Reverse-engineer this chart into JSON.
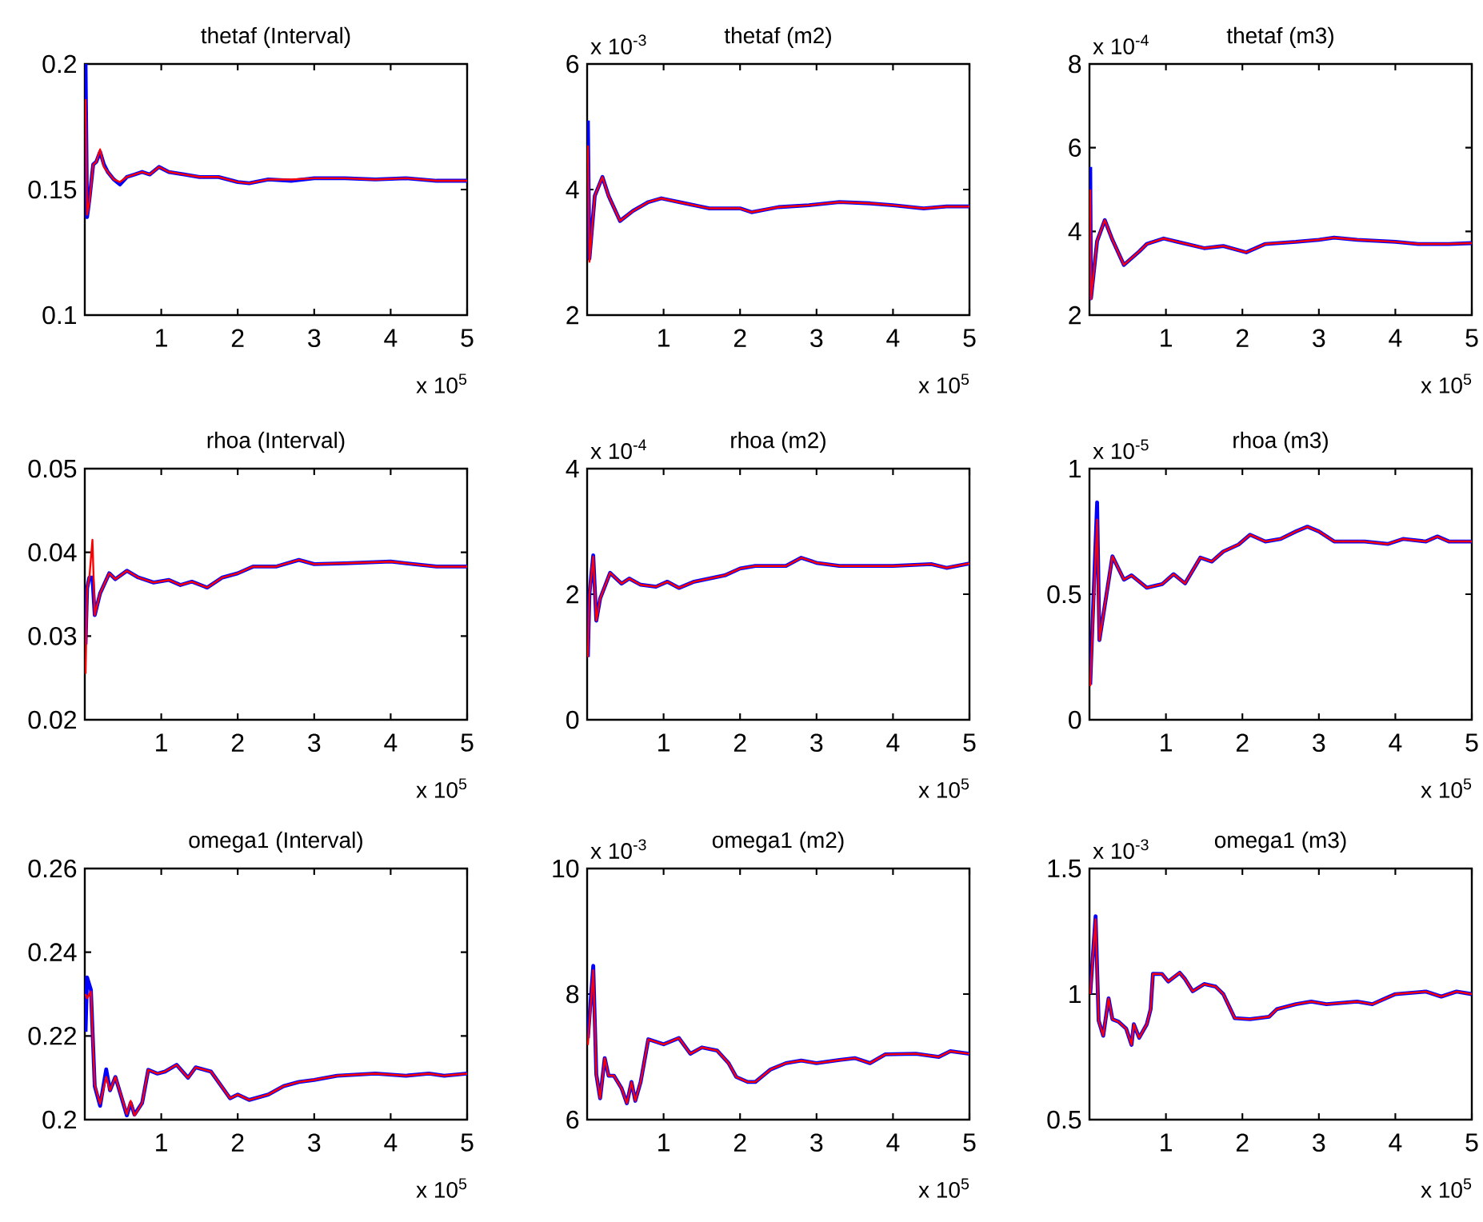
{
  "chart_data": [
    {
      "type": "line",
      "title": "thetaf (Interval)",
      "xlabel": "x 10$^{5}$",
      "xlim": [
        0,
        5
      ],
      "xticks": [
        1,
        2,
        3,
        4,
        5
      ],
      "ylim": [
        0.1,
        0.2
      ],
      "yticks": [
        0.1,
        0.15,
        0.2
      ],
      "x": [
        0.01,
        0.03,
        0.06,
        0.11,
        0.15,
        0.2,
        0.25,
        0.3,
        0.38,
        0.46,
        0.55,
        0.65,
        0.75,
        0.85,
        0.97,
        1.1,
        1.3,
        1.5,
        1.75,
        2,
        2.15,
        2.4,
        2.7,
        3,
        3.4,
        3.8,
        4.2,
        4.6,
        5
      ],
      "series": [
        {
          "color": "#0000ff",
          "values": [
            0.2,
            0.139,
            0.146,
            0.16,
            0.161,
            0.165,
            0.16,
            0.157,
            0.154,
            0.152,
            0.155,
            0.156,
            0.157,
            0.156,
            0.159,
            0.157,
            0.156,
            0.155,
            0.155,
            0.153,
            0.1525,
            0.154,
            0.1535,
            0.1545,
            0.1545,
            0.154,
            0.1545,
            0.1535,
            0.1535
          ]
        },
        {
          "color": "#ff0000",
          "values": [
            0.186,
            0.14,
            0.145,
            0.16,
            0.161,
            0.166,
            0.159,
            0.157,
            0.154,
            0.153,
            0.155,
            0.156,
            0.157,
            0.156,
            0.159,
            0.157,
            0.156,
            0.155,
            0.155,
            0.153,
            0.1525,
            0.154,
            0.154,
            0.1545,
            0.1545,
            0.154,
            0.1545,
            0.1535,
            0.1535
          ]
        }
      ]
    },
    {
      "type": "line",
      "title": "thetaf (m2)",
      "xlabel": "x 10$^{5}$",
      "ylabel": "x 10$^{-3}$",
      "xlim": [
        0,
        5
      ],
      "xticks": [
        1,
        2,
        3,
        4,
        5
      ],
      "ylim": [
        2,
        6
      ],
      "yticks": [
        2,
        4,
        6
      ],
      "x": [
        0.01,
        0.03,
        0.1,
        0.2,
        0.28,
        0.43,
        0.6,
        0.8,
        0.97,
        1.2,
        1.6,
        2,
        2.15,
        2.5,
        2.9,
        3.3,
        3.7,
        4,
        4.4,
        4.7,
        5
      ],
      "series": [
        {
          "color": "#0000ff",
          "values": [
            5.1,
            2.9,
            3.9,
            4.2,
            3.9,
            3.5,
            3.66,
            3.8,
            3.86,
            3.8,
            3.7,
            3.7,
            3.64,
            3.72,
            3.75,
            3.8,
            3.78,
            3.75,
            3.7,
            3.73,
            3.73
          ]
        },
        {
          "color": "#ff0000",
          "values": [
            4.7,
            2.85,
            3.9,
            4.2,
            3.9,
            3.5,
            3.66,
            3.8,
            3.86,
            3.8,
            3.7,
            3.7,
            3.64,
            3.72,
            3.75,
            3.8,
            3.78,
            3.75,
            3.7,
            3.73,
            3.73
          ]
        }
      ]
    },
    {
      "type": "line",
      "title": "thetaf (m3)",
      "xlabel": "x 10$^{5}$",
      "ylabel": "x 10$^{-4}$",
      "xlim": [
        0,
        5
      ],
      "xticks": [
        1,
        2,
        3,
        4,
        5
      ],
      "ylim": [
        2,
        8
      ],
      "yticks": [
        2,
        4,
        6,
        8
      ],
      "x": [
        0.01,
        0.02,
        0.1,
        0.2,
        0.3,
        0.45,
        0.65,
        0.75,
        0.97,
        1.15,
        1.5,
        1.75,
        2.05,
        2.3,
        2.7,
        3,
        3.2,
        3.5,
        4,
        4.3,
        4.7,
        5
      ],
      "series": [
        {
          "color": "#0000ff",
          "values": [
            5.54,
            2.4,
            3.77,
            4.27,
            3.8,
            3.2,
            3.52,
            3.7,
            3.83,
            3.75,
            3.6,
            3.65,
            3.5,
            3.7,
            3.75,
            3.8,
            3.85,
            3.8,
            3.75,
            3.7,
            3.7,
            3.72
          ]
        },
        {
          "color": "#ff0000",
          "values": [
            5.0,
            2.38,
            3.77,
            4.27,
            3.8,
            3.2,
            3.52,
            3.7,
            3.83,
            3.75,
            3.6,
            3.65,
            3.5,
            3.7,
            3.75,
            3.8,
            3.85,
            3.8,
            3.75,
            3.7,
            3.7,
            3.72
          ]
        }
      ]
    },
    {
      "type": "line",
      "title": "rhoa (Interval)",
      "xlabel": "x 10$^{5}$",
      "xlim": [
        0,
        5
      ],
      "xticks": [
        1,
        2,
        3,
        4,
        5
      ],
      "ylim": [
        0.02,
        0.05
      ],
      "yticks": [
        0.02,
        0.03,
        0.04,
        0.05
      ],
      "x": [
        0.01,
        0.03,
        0.06,
        0.1,
        0.13,
        0.2,
        0.32,
        0.4,
        0.55,
        0.7,
        0.9,
        1.1,
        1.25,
        1.4,
        1.6,
        1.8,
        2,
        2.2,
        2.5,
        2.8,
        3,
        3.4,
        4,
        4.3,
        4.6,
        5
      ],
      "series": [
        {
          "color": "#0000ff",
          "values": [
            0.029,
            0.0357,
            0.037,
            0.037,
            0.0325,
            0.0351,
            0.0375,
            0.0368,
            0.0378,
            0.037,
            0.0364,
            0.0367,
            0.0361,
            0.0365,
            0.0358,
            0.037,
            0.0375,
            0.0383,
            0.0383,
            0.0391,
            0.0386,
            0.0387,
            0.0389,
            0.0386,
            0.0383,
            0.0383
          ]
        },
        {
          "color": "#ff0000",
          "values": [
            0.0255,
            0.0357,
            0.037,
            0.0415,
            0.0325,
            0.0351,
            0.0375,
            0.0368,
            0.0378,
            0.037,
            0.0364,
            0.0367,
            0.0361,
            0.0365,
            0.0358,
            0.037,
            0.0375,
            0.0383,
            0.0383,
            0.0391,
            0.0386,
            0.0387,
            0.0389,
            0.0386,
            0.0383,
            0.0383
          ]
        }
      ]
    },
    {
      "type": "line",
      "title": "rhoa (m2)",
      "xlabel": "x 10$^{5}$",
      "ylabel": "x 10$^{-4}$",
      "xlim": [
        0,
        5
      ],
      "xticks": [
        1,
        2,
        3,
        4,
        5
      ],
      "ylim": [
        0,
        4
      ],
      "yticks": [
        0,
        2,
        4
      ],
      "x": [
        0.01,
        0.03,
        0.08,
        0.12,
        0.17,
        0.3,
        0.45,
        0.55,
        0.7,
        0.9,
        1.05,
        1.2,
        1.4,
        1.6,
        1.8,
        2,
        2.2,
        2.6,
        2.8,
        3,
        3.3,
        4,
        4.5,
        4.7,
        5
      ],
      "series": [
        {
          "color": "#0000ff",
          "values": [
            1.0,
            2.0,
            2.62,
            1.58,
            1.93,
            2.34,
            2.17,
            2.25,
            2.15,
            2.12,
            2.2,
            2.1,
            2.2,
            2.25,
            2.3,
            2.41,
            2.45,
            2.45,
            2.58,
            2.5,
            2.45,
            2.45,
            2.48,
            2.42,
            2.49
          ]
        },
        {
          "color": "#ff0000",
          "values": [
            1.0,
            2.0,
            2.6,
            1.58,
            1.93,
            2.34,
            2.17,
            2.25,
            2.15,
            2.12,
            2.2,
            2.1,
            2.2,
            2.25,
            2.3,
            2.41,
            2.45,
            2.45,
            2.58,
            2.5,
            2.45,
            2.45,
            2.48,
            2.42,
            2.49
          ]
        }
      ]
    },
    {
      "type": "line",
      "title": "rhoa (m3)",
      "xlabel": "x 10$^{5}$",
      "ylabel": "x 10$^{-5}$",
      "xlim": [
        0,
        5
      ],
      "xticks": [
        1,
        2,
        3,
        4,
        5
      ],
      "ylim": [
        0,
        1
      ],
      "yticks": [
        0,
        0.5,
        1
      ],
      "x": [
        0.01,
        0.1,
        0.13,
        0.3,
        0.45,
        0.55,
        0.75,
        0.95,
        1.1,
        1.25,
        1.45,
        1.6,
        1.75,
        1.95,
        2.1,
        2.3,
        2.5,
        2.7,
        2.85,
        3,
        3.2,
        3.6,
        3.9,
        4.1,
        4.4,
        4.55,
        4.7,
        5
      ],
      "series": [
        {
          "color": "#0000ff",
          "values": [
            0.14,
            0.866,
            0.317,
            0.651,
            0.558,
            0.575,
            0.526,
            0.54,
            0.58,
            0.543,
            0.646,
            0.63,
            0.67,
            0.698,
            0.737,
            0.71,
            0.72,
            0.75,
            0.769,
            0.75,
            0.71,
            0.71,
            0.7,
            0.72,
            0.71,
            0.73,
            0.71,
            0.71
          ]
        },
        {
          "color": "#ff0000",
          "values": [
            0.134,
            0.797,
            0.317,
            0.651,
            0.558,
            0.575,
            0.526,
            0.54,
            0.58,
            0.543,
            0.646,
            0.63,
            0.67,
            0.698,
            0.737,
            0.71,
            0.72,
            0.75,
            0.769,
            0.75,
            0.71,
            0.71,
            0.7,
            0.72,
            0.71,
            0.73,
            0.71,
            0.71
          ]
        }
      ]
    },
    {
      "type": "line",
      "title": "omega1 (Interval)",
      "xlabel": "x 10$^{5}$",
      "xlim": [
        0,
        5
      ],
      "xticks": [
        1,
        2,
        3,
        4,
        5
      ],
      "ylim": [
        0.2,
        0.26
      ],
      "yticks": [
        0.2,
        0.22,
        0.24,
        0.26
      ],
      "x": [
        0.01,
        0.03,
        0.08,
        0.13,
        0.2,
        0.28,
        0.33,
        0.4,
        0.55,
        0.6,
        0.65,
        0.75,
        0.83,
        0.95,
        1.05,
        1.2,
        1.35,
        1.45,
        1.65,
        1.9,
        2,
        2.15,
        2.4,
        2.6,
        2.8,
        3,
        3.3,
        3.8,
        4.2,
        4.5,
        4.7,
        5
      ],
      "series": [
        {
          "color": "#0000ff",
          "values": [
            0.221,
            0.234,
            0.231,
            0.208,
            0.2033,
            0.212,
            0.207,
            0.2102,
            0.201,
            0.204,
            0.2012,
            0.204,
            0.2119,
            0.211,
            0.2115,
            0.2131,
            0.21,
            0.2125,
            0.2115,
            0.2051,
            0.206,
            0.2047,
            0.206,
            0.208,
            0.209,
            0.2095,
            0.2105,
            0.211,
            0.2105,
            0.211,
            0.2105,
            0.211
          ]
        },
        {
          "color": "#ff0000",
          "values": [
            0.23,
            0.229,
            0.2306,
            0.2083,
            0.2038,
            0.2102,
            0.207,
            0.2102,
            0.2013,
            0.2045,
            0.201,
            0.204,
            0.2119,
            0.211,
            0.2115,
            0.2131,
            0.21,
            0.2125,
            0.2115,
            0.2051,
            0.206,
            0.2047,
            0.206,
            0.208,
            0.209,
            0.2095,
            0.2105,
            0.211,
            0.2105,
            0.211,
            0.2105,
            0.211
          ]
        }
      ]
    },
    {
      "type": "line",
      "title": "omega1 (m2)",
      "xlabel": "x 10$^{5}$",
      "ylabel": "x 10$^{-3}$",
      "xlim": [
        0,
        5
      ],
      "xticks": [
        1,
        2,
        3,
        4,
        5
      ],
      "ylim": [
        6,
        10
      ],
      "yticks": [
        6,
        8,
        10
      ],
      "x": [
        0.01,
        0.08,
        0.12,
        0.17,
        0.23,
        0.28,
        0.35,
        0.45,
        0.52,
        0.58,
        0.63,
        0.7,
        0.8,
        1,
        1.2,
        1.35,
        1.5,
        1.7,
        1.85,
        1.95,
        2.1,
        2.2,
        2.4,
        2.6,
        2.8,
        3,
        3.3,
        3.5,
        3.7,
        3.9,
        4.3,
        4.6,
        4.75,
        5
      ],
      "series": [
        {
          "color": "#0000ff",
          "values": [
            7.3,
            8.45,
            6.72,
            6.34,
            6.98,
            6.7,
            6.7,
            6.5,
            6.26,
            6.6,
            6.3,
            6.6,
            7.28,
            7.2,
            7.3,
            7.05,
            7.15,
            7.1,
            6.9,
            6.68,
            6.6,
            6.6,
            6.8,
            6.9,
            6.94,
            6.9,
            6.95,
            6.98,
            6.9,
            7.04,
            7.05,
            7.0,
            7.09,
            7.05
          ]
        },
        {
          "color": "#ff0000",
          "values": [
            7.19,
            8.38,
            6.72,
            6.34,
            6.98,
            6.7,
            6.7,
            6.5,
            6.26,
            6.6,
            6.3,
            6.6,
            7.28,
            7.2,
            7.3,
            7.05,
            7.15,
            7.1,
            6.9,
            6.68,
            6.6,
            6.6,
            6.8,
            6.9,
            6.94,
            6.9,
            6.95,
            6.98,
            6.9,
            7.04,
            7.05,
            7.0,
            7.09,
            7.05
          ]
        }
      ]
    },
    {
      "type": "line",
      "title": "omega1 (m3)",
      "xlabel": "x 10$^{5}$",
      "ylabel": "x 10$^{-3}$",
      "xlim": [
        0,
        5
      ],
      "xticks": [
        1,
        2,
        3,
        4,
        5
      ],
      "ylim": [
        0.5,
        1.5
      ],
      "yticks": [
        0.5,
        1,
        1.5
      ],
      "x": [
        0.01,
        0.08,
        0.12,
        0.18,
        0.25,
        0.3,
        0.38,
        0.48,
        0.55,
        0.58,
        0.65,
        0.75,
        0.8,
        0.83,
        0.95,
        1.03,
        1.18,
        1.25,
        1.35,
        1.5,
        1.65,
        1.75,
        1.9,
        2.1,
        2.35,
        2.45,
        2.7,
        2.9,
        3.1,
        3.5,
        3.7,
        3.85,
        4,
        4.4,
        4.6,
        4.8,
        5
      ],
      "series": [
        {
          "color": "#0000ff",
          "values": [
            1.0,
            1.31,
            0.894,
            0.834,
            0.983,
            0.9,
            0.89,
            0.862,
            0.798,
            0.88,
            0.826,
            0.88,
            0.94,
            1.081,
            1.08,
            1.05,
            1.085,
            1.06,
            1.011,
            1.04,
            1.03,
            1.0,
            0.904,
            0.9,
            0.91,
            0.94,
            0.96,
            0.97,
            0.96,
            0.97,
            0.96,
            0.98,
            1.0,
            1.01,
            0.99,
            1.01,
            1.0
          ]
        },
        {
          "color": "#ff0000",
          "values": [
            1.0,
            1.298,
            0.894,
            0.834,
            0.983,
            0.9,
            0.89,
            0.862,
            0.798,
            0.88,
            0.826,
            0.88,
            0.94,
            1.081,
            1.08,
            1.05,
            1.085,
            1.06,
            1.011,
            1.04,
            1.03,
            1.0,
            0.904,
            0.9,
            0.91,
            0.94,
            0.96,
            0.97,
            0.96,
            0.97,
            0.96,
            0.98,
            1.0,
            1.01,
            0.99,
            1.01,
            1.0
          ]
        }
      ]
    }
  ]
}
